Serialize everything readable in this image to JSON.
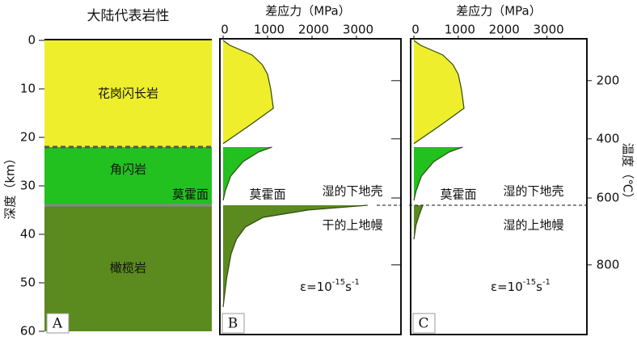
{
  "depth_axis": {
    "label": "深度（km）",
    "lim": [
      0,
      60
    ],
    "ticks": [
      0,
      10,
      20,
      30,
      40,
      50,
      60
    ]
  },
  "lithology": {
    "title": "大陆代表岩性",
    "tag": "A",
    "moho_label": "莫霍面",
    "layers": [
      {
        "label": "花岗闪长岩",
        "top": 0,
        "bottom": 22,
        "color": "#eeee2c"
      },
      {
        "label": "角闪岩",
        "top": 22,
        "bottom": 34,
        "color": "#22c11f"
      },
      {
        "label": "橄榄岩",
        "top": 34,
        "bottom": 60,
        "color": "#5b8a1e"
      }
    ]
  },
  "stress_panels": [
    {
      "tag": "B",
      "title": "差应力（MPa）",
      "lim": [
        0,
        4000
      ],
      "ticks": [
        0,
        1000,
        2000,
        3000
      ],
      "moho_label": "莫霍面",
      "crust_label": "湿的下地壳",
      "mantle_label": "干的上地幔",
      "strain_rate": {
        "base": "ε=10",
        "exp": "-15",
        "unit": "s",
        "unit_exp": "-1"
      },
      "envelopes": [
        {
          "color": "#eeee2c",
          "depth": [
            0,
            1,
            2,
            3,
            5,
            7,
            10,
            14,
            17.5,
            21.3
          ],
          "stress": [
            0,
            150,
            400,
            650,
            880,
            1000,
            1070,
            1130,
            600,
            0
          ]
        },
        {
          "color": "#22c11f",
          "depth": [
            22,
            23,
            25,
            28,
            31,
            33
          ],
          "stress": [
            1100,
            800,
            450,
            170,
            50,
            0
          ]
        },
        {
          "color": "#5b8a1e",
          "depth": [
            34,
            35,
            36.5,
            38.5,
            41,
            44,
            49,
            55
          ],
          "stress": [
            3250,
            1900,
            900,
            500,
            300,
            180,
            80,
            0
          ]
        }
      ]
    },
    {
      "tag": "C",
      "title": "差应力（MPa）",
      "lim": [
        0,
        3900
      ],
      "ticks": [
        0,
        1000,
        2000,
        3000
      ],
      "moho_label": "莫霍面",
      "crust_label": "湿的下地壳",
      "mantle_label": "湿的上地幔",
      "strain_rate": {
        "base": "ε=10",
        "exp": "-15",
        "unit": "s",
        "unit_exp": "-1"
      },
      "envelopes": [
        {
          "color": "#eeee2c",
          "depth": [
            0,
            1,
            2,
            3,
            5,
            7,
            10,
            14,
            17.5,
            21.3
          ],
          "stress": [
            0,
            150,
            400,
            650,
            880,
            1000,
            1070,
            1130,
            600,
            0
          ]
        },
        {
          "color": "#22c11f",
          "depth": [
            22,
            23,
            25,
            28,
            31,
            33
          ],
          "stress": [
            1100,
            800,
            450,
            170,
            50,
            0
          ]
        },
        {
          "color": "#5b8a1e",
          "depth": [
            34,
            36,
            38,
            41
          ],
          "stress": [
            200,
            120,
            50,
            0
          ]
        }
      ]
    }
  ],
  "temperature_axis": {
    "label": "温度（℃）",
    "ticks": [
      {
        "value": 200,
        "depth": 8.3
      },
      {
        "value": 400,
        "depth": 20.3
      },
      {
        "value": 600,
        "depth": 32.5
      },
      {
        "value": 800,
        "depth": 46.3
      }
    ]
  }
}
